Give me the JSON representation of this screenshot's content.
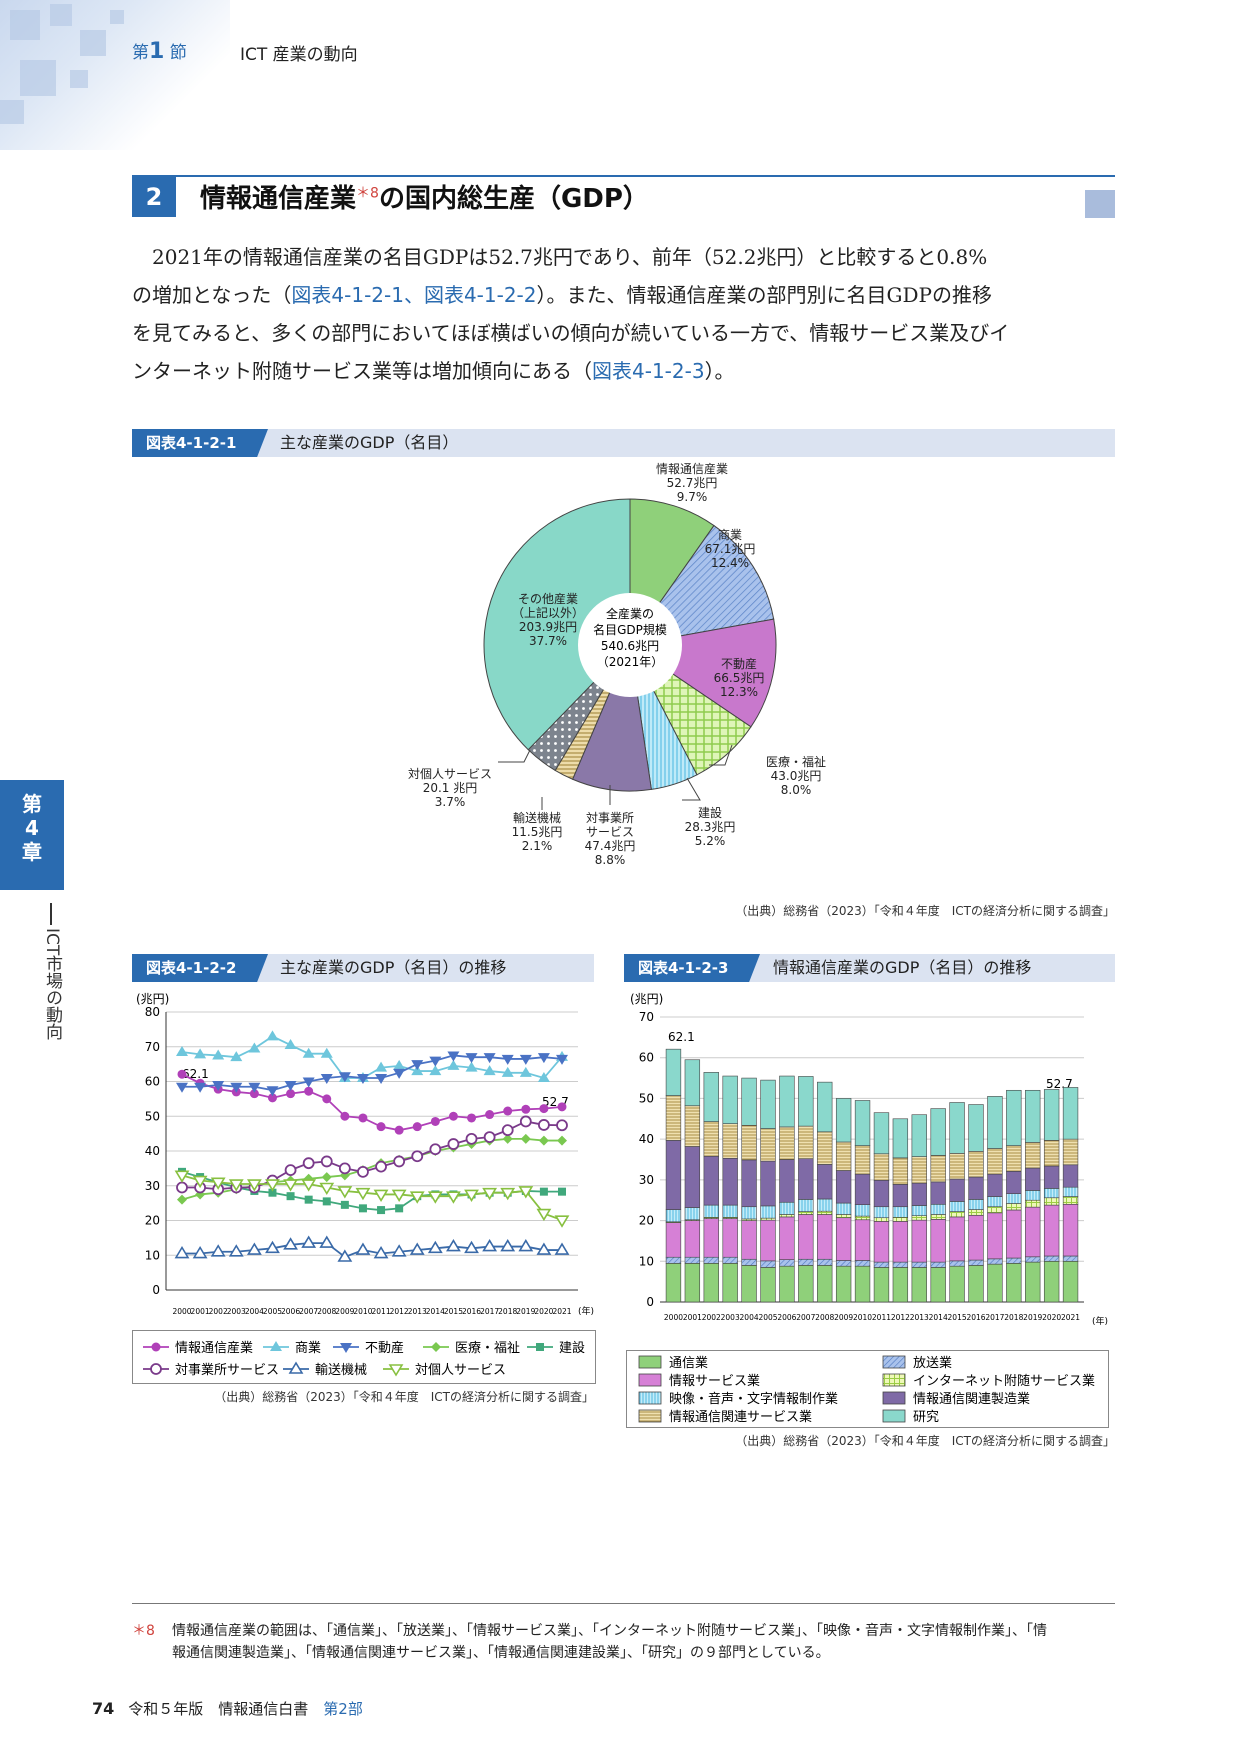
{
  "header": {
    "section_prefix": "第",
    "section_num": "1",
    "section_suffix": "節",
    "title": "ICT 産業の動向"
  },
  "heading": {
    "num": "2",
    "text": "情報通信産業",
    "note": "＊8",
    "text2": "の国内総生産（GDP）"
  },
  "paragraph": {
    "l1": "2021年の情報通信産業の名目GDPは52.7兆円であり、前年（52.2兆円）と比較すると0.8%",
    "l2a": "の増加となった（",
    "l2link": "図表4-1-2-1、図表4-1-2-2",
    "l2b": "）。また、情報通信産業の部門別に名目GDPの推移",
    "l3": "を見てみると、多くの部門においてほぼ横ばいの傾向が続いている一方で、情報サービス業及びイ",
    "l4a": "ンターネット附随サービス業等は増加傾向にある（",
    "l4link": "図表4-1-2-3",
    "l4b": "）。"
  },
  "side": {
    "chapter": "第\n4\n章",
    "text": "ICT市場の動向"
  },
  "footnote": {
    "mark": "＊8",
    "l1": "情報通信産業の範囲は、「通信業」、「放送業」、「情報サービス業」、「インターネット附随サービス業」、「映像・音声・文字情報制作業」、「情",
    "l2": "報通信関連製造業」、「情報通信関連サービス業」、「情報通信関連建設業」、「研究」の９部門としている。"
  },
  "footer": {
    "page": "74",
    "title": "令和５年版　情報通信白書",
    "part": "第2部"
  },
  "colors": {
    "accent": "#2a6bb0",
    "ict": "#8fd07a",
    "commerce": "#7fa3dc",
    "realestate": "#c878cc",
    "medical": "#b4e67e",
    "construction": "#8ad8f0",
    "business": "#8a78a8",
    "transport": "#d8c488",
    "personal": "#9aa0a8",
    "other": "#88d8c8"
  },
  "chart_data": [
    {
      "type": "pie",
      "label": "図表4-1-2-1",
      "title": "主な産業のGDP（名目）",
      "center_label": [
        "全産業の",
        "名目GDP規模",
        "540.6兆円",
        "（2021年）"
      ],
      "slices": [
        {
          "name": "情報通信産業",
          "value": 52.7,
          "value_label": "52.7兆円",
          "pct": "9.7%"
        },
        {
          "name": "商業",
          "value": 67.1,
          "value_label": "67.1兆円",
          "pct": "12.4%"
        },
        {
          "name": "不動産",
          "value": 66.5,
          "value_label": "66.5兆円",
          "pct": "12.3%"
        },
        {
          "name": "医療・福祉",
          "value": 43.0,
          "value_label": "43.0兆円",
          "pct": "8.0%"
        },
        {
          "name": "建設",
          "value": 28.3,
          "value_label": "28.3兆円",
          "pct": "5.2%"
        },
        {
          "name": "対事業所サービス",
          "value": 47.4,
          "value_label": "47.4兆円",
          "pct": "8.8%"
        },
        {
          "name": "輸送機械",
          "value": 11.5,
          "value_label": "11.5兆円",
          "pct": "2.1%"
        },
        {
          "name": "対個人サービス",
          "value": 20.1,
          "value_label": "20.1 兆円",
          "pct": "3.7%"
        },
        {
          "name": "その他産業（上記以外）",
          "value": 203.9,
          "value_label": "203.9兆円",
          "pct": "37.7%"
        }
      ],
      "source": "（出典）総務省（2023）「令和４年度　ICTの経済分析に関する調査」"
    },
    {
      "type": "line",
      "label": "図表4-1-2-2",
      "title": "主な産業のGDP（名目）の推移",
      "unit": "(兆円)",
      "xunit": "(年)",
      "ylim": [
        0,
        80
      ],
      "yticks": [
        0,
        10,
        20,
        30,
        40,
        50,
        60,
        70,
        80
      ],
      "x": [
        "2000",
        "2001",
        "2002",
        "2003",
        "2004",
        "2005",
        "2006",
        "2007",
        "2008",
        "2009",
        "2010",
        "2011",
        "2012",
        "2013",
        "2014",
        "2015",
        "2016",
        "2017",
        "2018",
        "2019",
        "2020",
        "2021"
      ],
      "series": [
        {
          "name": "情報通信産業",
          "marker": "circle-filled",
          "values": [
            62.1,
            59.5,
            57.8,
            57.0,
            56.5,
            55.3,
            56.5,
            57.2,
            55.0,
            50.0,
            49.5,
            47.0,
            46.0,
            47.0,
            48.5,
            50.0,
            49.5,
            50.5,
            51.5,
            52.0,
            52.2,
            52.7
          ]
        },
        {
          "name": "商業",
          "marker": "tri-up",
          "values": [
            68.5,
            67.8,
            67.5,
            67.0,
            69.5,
            73.0,
            70.5,
            68.0,
            68.0,
            61.0,
            61.0,
            64.0,
            64.5,
            63.0,
            63.0,
            64.5,
            64.0,
            63.0,
            62.5,
            62.5,
            61.0,
            67.1
          ]
        },
        {
          "name": "不動産",
          "marker": "tri-down",
          "values": [
            58.5,
            58.5,
            59.0,
            58.5,
            58.5,
            57.5,
            59.0,
            60.0,
            61.0,
            61.5,
            61.0,
            61.0,
            62.5,
            65.0,
            66.0,
            67.5,
            67.0,
            67.0,
            66.5,
            66.5,
            67.0,
            66.5
          ]
        },
        {
          "name": "医療・福祉",
          "marker": "diamond",
          "values": [
            26.0,
            27.5,
            28.0,
            29.0,
            30.0,
            31.0,
            31.5,
            32.0,
            32.5,
            33.0,
            34.5,
            36.5,
            37.5,
            38.5,
            40.0,
            41.0,
            42.0,
            43.0,
            43.5,
            43.5,
            43.0,
            43.0
          ]
        },
        {
          "name": "建設",
          "marker": "square",
          "values": [
            34.0,
            32.5,
            31.0,
            29.5,
            28.5,
            28.0,
            27.0,
            26.0,
            25.5,
            24.5,
            23.5,
            23.0,
            23.5,
            27.0,
            27.5,
            27.5,
            27.5,
            28.0,
            28.0,
            28.5,
            28.3,
            28.3
          ]
        },
        {
          "name": "対事業所サービス",
          "marker": "circle-open",
          "values": [
            29.5,
            29.5,
            29.0,
            29.5,
            29.5,
            31.5,
            34.5,
            36.5,
            37.0,
            35.0,
            34.0,
            35.5,
            37.0,
            38.5,
            40.5,
            42.0,
            43.5,
            44.0,
            46.0,
            48.5,
            47.5,
            47.4
          ]
        },
        {
          "name": "輸送機械",
          "marker": "tri-up-open",
          "values": [
            10.5,
            10.5,
            11.0,
            11.0,
            11.5,
            12.0,
            13.0,
            13.5,
            13.5,
            9.5,
            11.5,
            10.5,
            11.0,
            11.5,
            12.0,
            12.5,
            12.0,
            12.5,
            12.5,
            12.5,
            11.5,
            11.5
          ]
        },
        {
          "name": "対個人サービス",
          "marker": "tri-down-open",
          "values": [
            33.0,
            31.5,
            31.0,
            30.5,
            30.5,
            30.5,
            30.5,
            30.5,
            29.5,
            28.5,
            28.0,
            27.5,
            27.5,
            27.0,
            27.0,
            27.0,
            27.5,
            28.0,
            28.0,
            28.5,
            22.0,
            20.1
          ]
        }
      ],
      "annotations": [
        "62.1",
        "52.7"
      ],
      "source": "（出典）総務省（2023）「令和４年度　ICTの経済分析に関する調査」"
    },
    {
      "type": "bar",
      "stacked": true,
      "label": "図表4-1-2-3",
      "title": "情報通信産業のGDP（名目）の推移",
      "unit": "(兆円)",
      "xunit": "(年)",
      "ylim": [
        0,
        70
      ],
      "yticks": [
        0,
        10,
        20,
        30,
        40,
        50,
        60,
        70
      ],
      "categories": [
        "2000",
        "2001",
        "2002",
        "2003",
        "2004",
        "2005",
        "2006",
        "2007",
        "2008",
        "2009",
        "2010",
        "2011",
        "2012",
        "2013",
        "2014",
        "2015",
        "2016",
        "2017",
        "2018",
        "2019",
        "2020",
        "2021"
      ],
      "series": [
        {
          "name": "通信業",
          "values": [
            9.5,
            9.5,
            9.5,
            9.5,
            9.0,
            8.5,
            8.8,
            9.0,
            9.0,
            8.8,
            8.8,
            8.5,
            8.5,
            8.5,
            8.5,
            8.8,
            9.0,
            9.3,
            9.5,
            9.8,
            10.0,
            10.0
          ]
        },
        {
          "name": "放送業",
          "values": [
            1.5,
            1.5,
            1.5,
            1.5,
            1.5,
            1.6,
            1.6,
            1.5,
            1.5,
            1.4,
            1.4,
            1.3,
            1.3,
            1.3,
            1.3,
            1.3,
            1.3,
            1.3,
            1.3,
            1.3,
            1.3,
            1.3
          ]
        },
        {
          "name": "情報サービス業",
          "values": [
            8.5,
            9.0,
            9.5,
            9.5,
            9.5,
            10.0,
            10.5,
            11.0,
            11.0,
            10.5,
            10.0,
            10.0,
            10.0,
            10.3,
            10.5,
            10.8,
            11.0,
            11.3,
            11.8,
            12.2,
            12.5,
            12.7
          ]
        },
        {
          "name": "インターネット附随サービス業",
          "values": [
            0.2,
            0.2,
            0.3,
            0.3,
            0.4,
            0.5,
            0.6,
            0.7,
            0.8,
            0.8,
            0.9,
            0.9,
            1.0,
            1.1,
            1.2,
            1.3,
            1.4,
            1.5,
            1.6,
            1.7,
            1.8,
            1.9
          ]
        },
        {
          "name": "映像・音声・文字情報制作業",
          "values": [
            3.0,
            3.0,
            3.0,
            3.0,
            3.0,
            3.0,
            3.0,
            3.0,
            3.0,
            2.8,
            2.8,
            2.7,
            2.6,
            2.5,
            2.5,
            2.5,
            2.5,
            2.5,
            2.4,
            2.4,
            2.3,
            2.3
          ]
        },
        {
          "name": "情報通信関連製造業",
          "values": [
            17.0,
            15.0,
            12.0,
            11.5,
            11.5,
            11.0,
            10.5,
            10.0,
            8.5,
            8.0,
            7.5,
            6.5,
            5.5,
            5.5,
            5.5,
            5.5,
            5.5,
            5.5,
            5.5,
            5.5,
            5.5,
            5.5
          ]
        },
        {
          "name": "情報通信関連サービス業",
          "values": [
            11.0,
            10.0,
            8.5,
            8.5,
            8.5,
            8.0,
            8.0,
            8.0,
            8.0,
            7.0,
            7.0,
            6.5,
            6.5,
            6.5,
            6.5,
            6.3,
            6.3,
            6.3,
            6.3,
            6.3,
            6.3,
            6.3
          ]
        },
        {
          "name": "研究",
          "values": [
            11.4,
            11.3,
            12.1,
            11.7,
            11.6,
            11.9,
            12.5,
            12.2,
            12.2,
            10.7,
            11.1,
            10.1,
            9.6,
            10.3,
            11.5,
            12.5,
            11.5,
            12.8,
            13.6,
            12.8,
            12.5,
            12.7
          ]
        }
      ],
      "annotations": [
        "62.1",
        "52.7"
      ],
      "source": "（出典）総務省（2023）「令和４年度　ICTの経済分析に関する調査」"
    }
  ]
}
